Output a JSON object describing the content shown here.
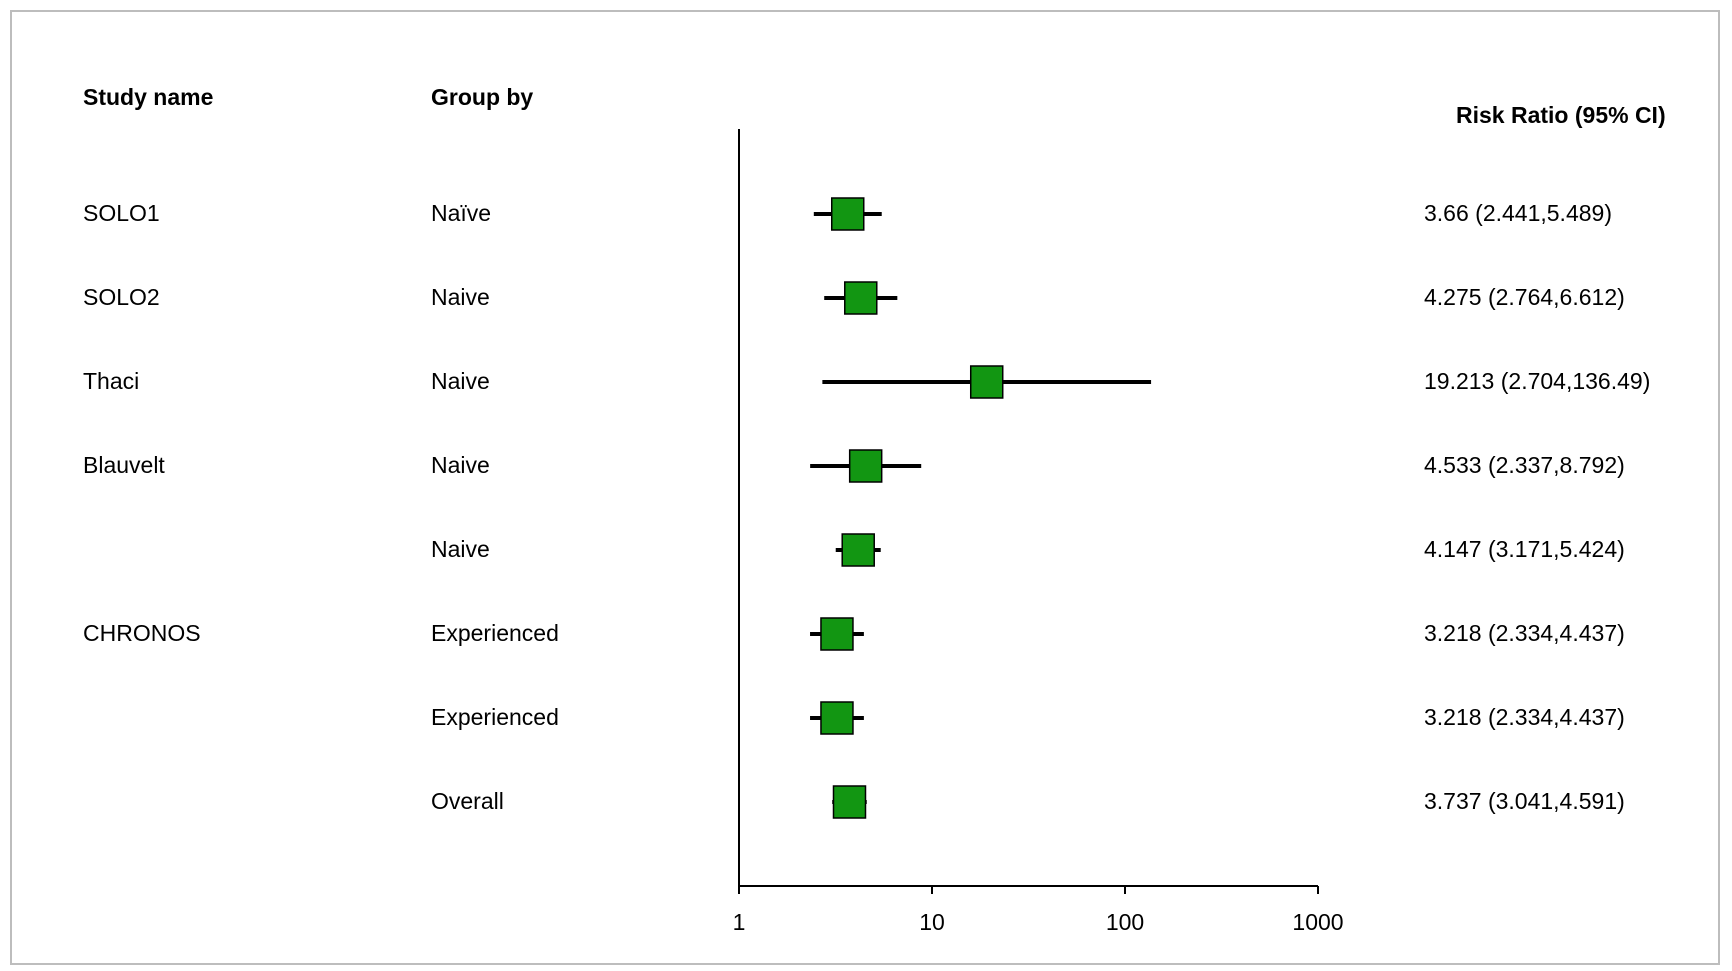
{
  "headers": {
    "study": "Study name",
    "group": "Group by",
    "effect": "Risk Ratio (95% CI)"
  },
  "rows": [
    {
      "study": "SOLO1",
      "group": "Naïve",
      "ci_text": "3.66 (2.441,5.489)"
    },
    {
      "study": "SOLO2",
      "group": "Naive",
      "ci_text": "4.275 (2.764,6.612)"
    },
    {
      "study": "Thaci",
      "group": "Naive",
      "ci_text": "19.213 (2.704,136.49)"
    },
    {
      "study": "Blauvelt",
      "group": "Naive",
      "ci_text": "4.533 (2.337,8.792)"
    },
    {
      "study": "",
      "group": "Naive",
      "ci_text": "4.147 (3.171,5.424)"
    },
    {
      "study": "CHRONOS",
      "group": "Experienced",
      "ci_text": "3.218 (2.334,4.437)"
    },
    {
      "study": "",
      "group": "Experienced",
      "ci_text": "3.218 (2.334,4.437)"
    },
    {
      "study": "",
      "group": "Overall",
      "ci_text": "3.737 (3.041,4.591)"
    }
  ],
  "chart_data": {
    "type": "scatter",
    "subtype": "forest-plot",
    "x_scale": "log",
    "xlim": [
      1,
      1000
    ],
    "x_ticks": [
      "1",
      "10",
      "100",
      "1000"
    ],
    "marker_color": "#129612",
    "marker_border": "#000000",
    "points": [
      {
        "estimate": 3.66,
        "lower": 2.441,
        "upper": 5.489
      },
      {
        "estimate": 4.275,
        "lower": 2.764,
        "upper": 6.612
      },
      {
        "estimate": 19.213,
        "lower": 2.704,
        "upper": 136.49
      },
      {
        "estimate": 4.533,
        "lower": 2.337,
        "upper": 8.792
      },
      {
        "estimate": 4.147,
        "lower": 3.171,
        "upper": 5.424
      },
      {
        "estimate": 3.218,
        "lower": 2.334,
        "upper": 4.437
      },
      {
        "estimate": 3.218,
        "lower": 2.334,
        "upper": 4.437
      },
      {
        "estimate": 3.737,
        "lower": 3.041,
        "upper": 4.591
      }
    ]
  }
}
